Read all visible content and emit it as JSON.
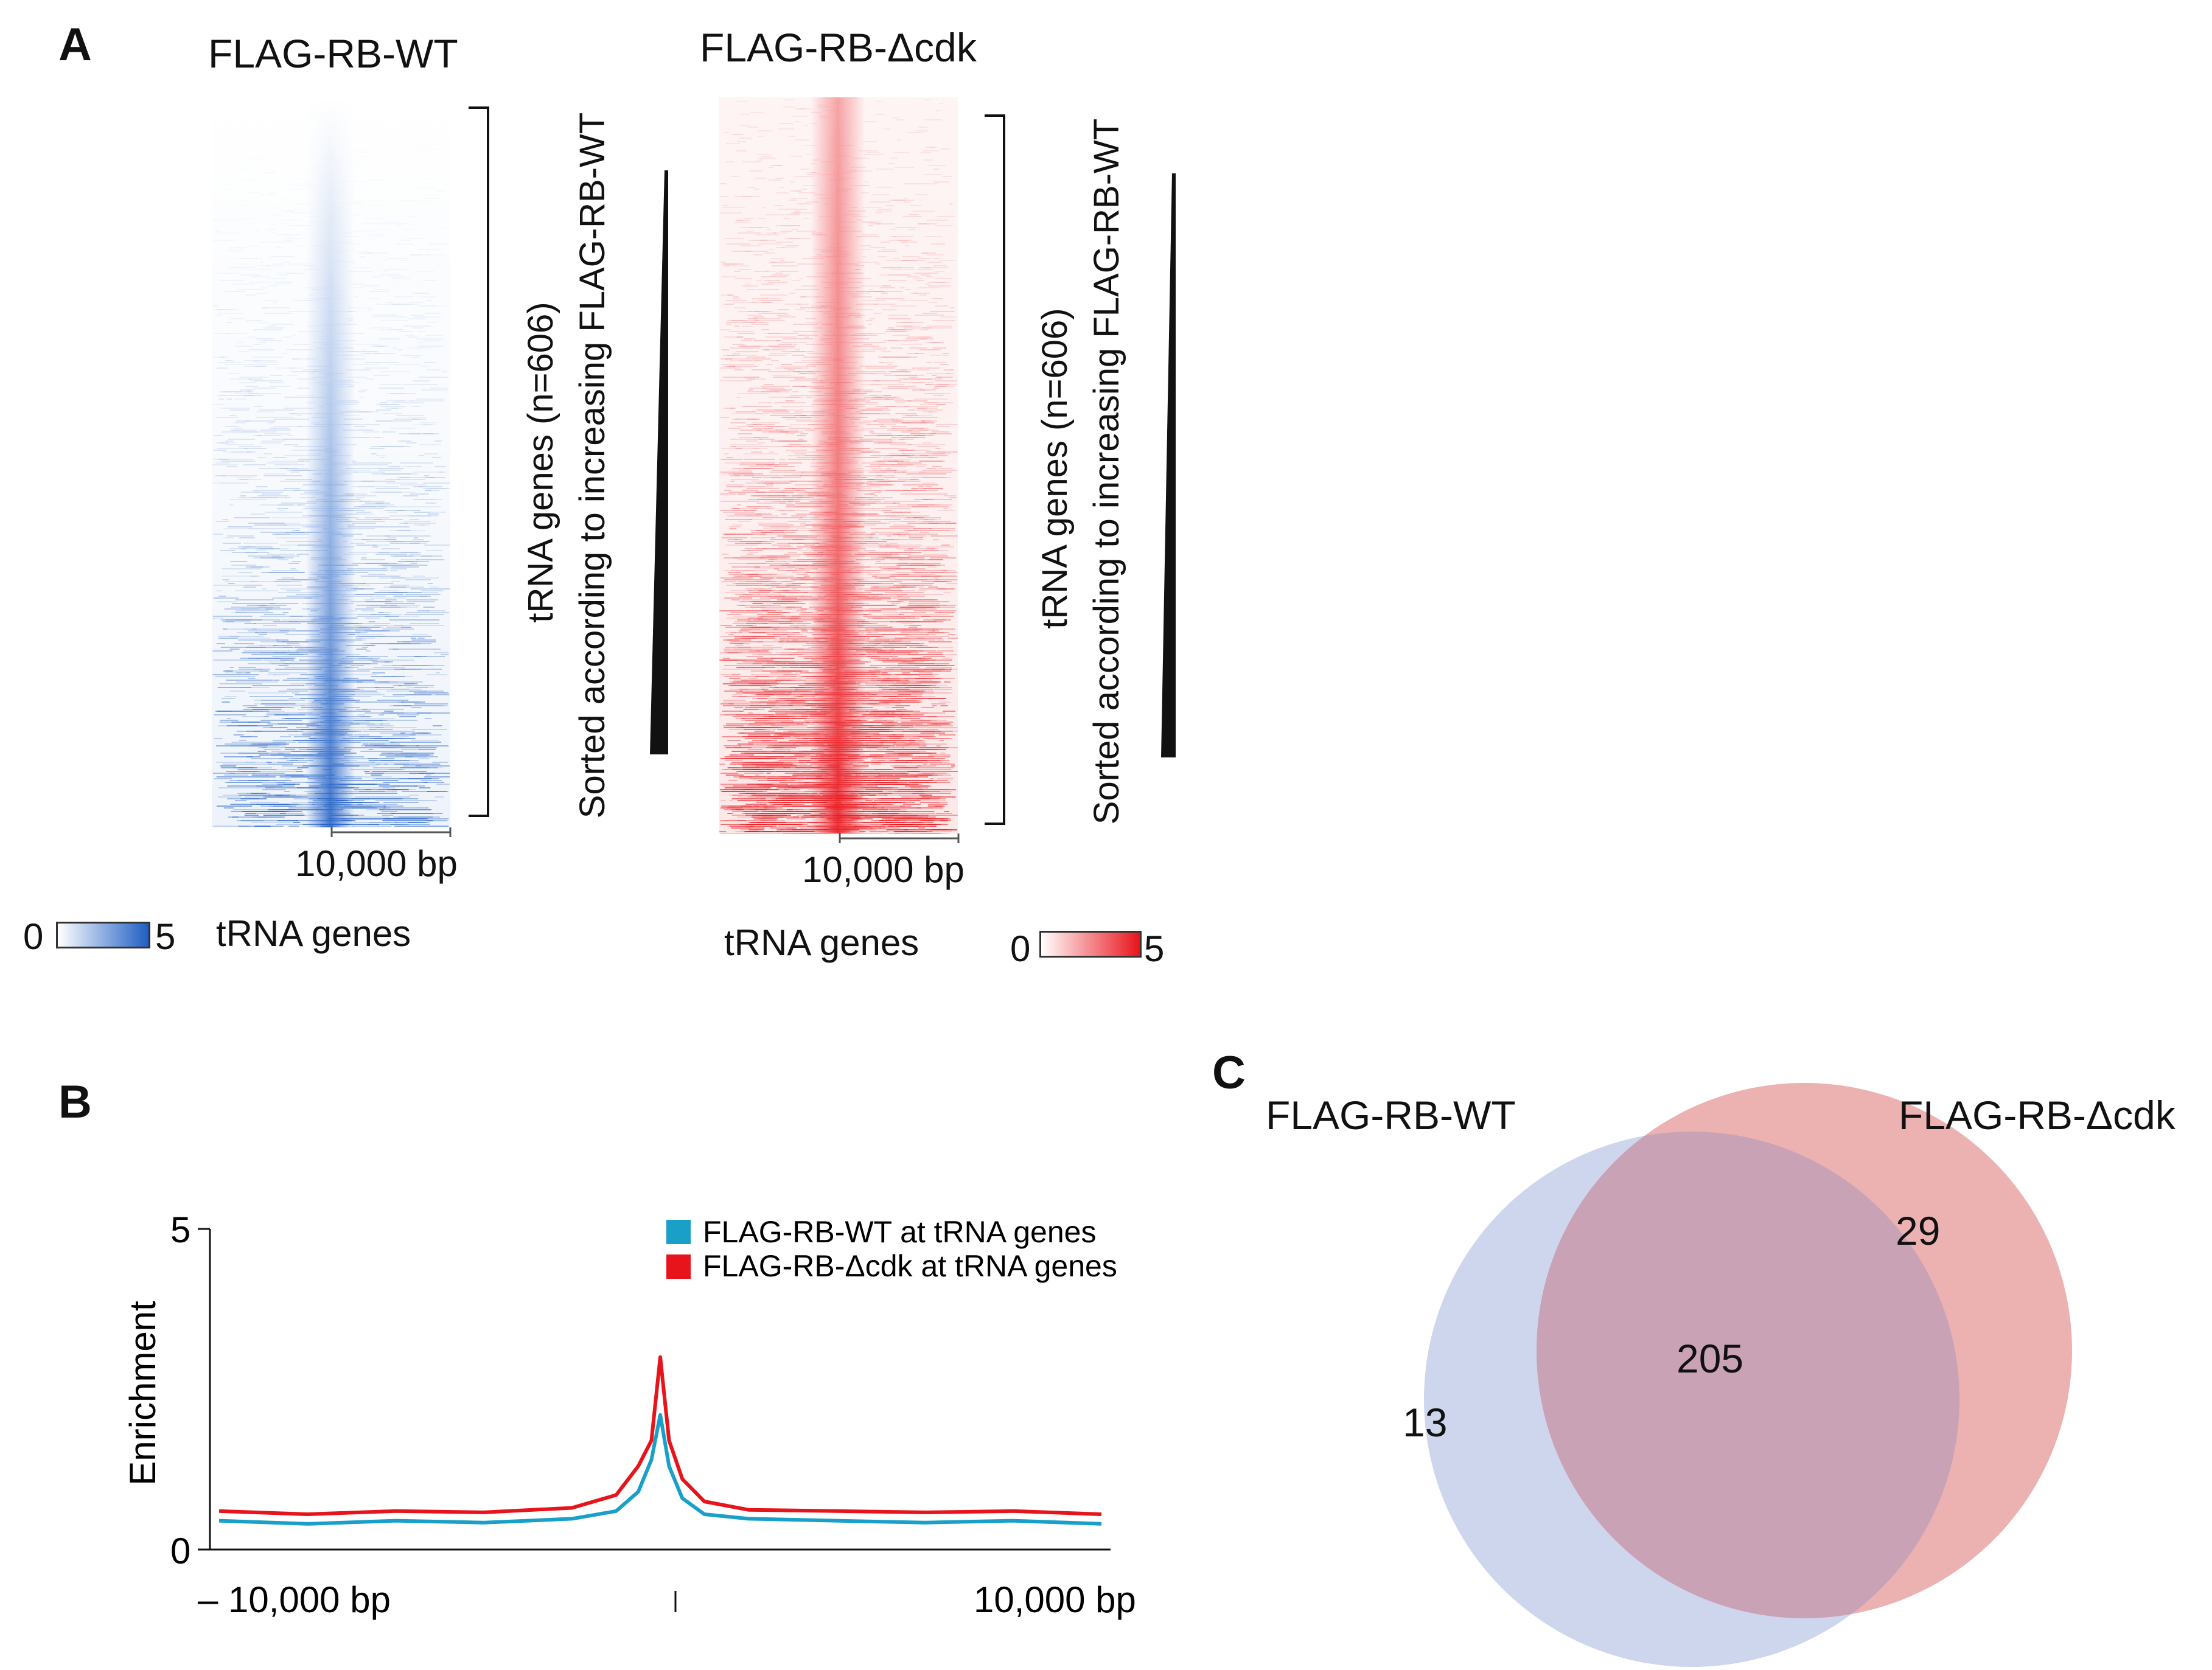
{
  "panelA": {
    "letter": "A",
    "wt_title": "FLAG-RB-WT",
    "dcdk_title": "FLAG-RB-Δcdk",
    "wt_scale": "10,000 bp",
    "dcdk_scale": "10,000 bp",
    "wt_ylabel_line1": "tRNA genes (n=606)",
    "wt_ylabel_line2": "Sorted according to increasing FLAG-RB-WT",
    "dcdk_ylabel_line1": "tRNA genes (n=606)",
    "dcdk_ylabel_line2": "Sorted according to increasing FLAG-RB-WT",
    "wt_xlabel": "tRNA genes",
    "dcdk_xlabel": "tRNA genes",
    "wt_cbar_min": "0",
    "wt_cbar_max": "5",
    "dcdk_cbar_min": "0",
    "dcdk_cbar_max": "5",
    "colors": {
      "wt": "#1f5fc4",
      "dcdk": "#e8141b"
    }
  },
  "panelB": {
    "letter": "B",
    "chart_data": {
      "type": "line",
      "ylabel": "Enrichment",
      "ylim": [
        0,
        5
      ],
      "yticks": [
        "0",
        "5"
      ],
      "xlabel_left": "– 10,000 bp",
      "xlabel_right": "10,000 bp",
      "xlim": [
        -10000,
        10000
      ],
      "series": [
        {
          "name": "FLAG-RB-WT at tRNA genes",
          "color": "#1aa0c8",
          "x": [
            -10000,
            -8000,
            -6000,
            -4000,
            -2000,
            -1000,
            -500,
            -200,
            0,
            200,
            500,
            1000,
            2000,
            4000,
            6000,
            8000,
            10000
          ],
          "y": [
            0.45,
            0.4,
            0.45,
            0.42,
            0.48,
            0.6,
            0.9,
            1.4,
            2.1,
            1.3,
            0.8,
            0.55,
            0.48,
            0.45,
            0.42,
            0.45,
            0.4
          ]
        },
        {
          "name": "FLAG-RB-Δcdk at tRNA genes",
          "color": "#e8141b",
          "x": [
            -10000,
            -8000,
            -6000,
            -4000,
            -2000,
            -1000,
            -500,
            -200,
            0,
            200,
            500,
            1000,
            2000,
            4000,
            6000,
            8000,
            10000
          ],
          "y": [
            0.6,
            0.55,
            0.6,
            0.58,
            0.65,
            0.85,
            1.3,
            1.7,
            3.0,
            1.7,
            1.1,
            0.75,
            0.62,
            0.6,
            0.58,
            0.6,
            0.55
          ]
        }
      ]
    }
  },
  "panelC": {
    "letter": "C",
    "chart_data": {
      "type": "venn",
      "sets": [
        {
          "name": "FLAG-RB-WT",
          "only": 13,
          "color": "#c9d2ec"
        },
        {
          "name": "FLAG-RB-Δcdk",
          "only": 29,
          "color": "#eaa9a9"
        }
      ],
      "overlap": 205,
      "overlap_color": "#c9a3b5"
    },
    "wt_label": "FLAG-RB-WT",
    "dcdk_label": "FLAG-RB-Δcdk",
    "wt_only": "13",
    "dcdk_only": "29",
    "overlap": "205"
  }
}
